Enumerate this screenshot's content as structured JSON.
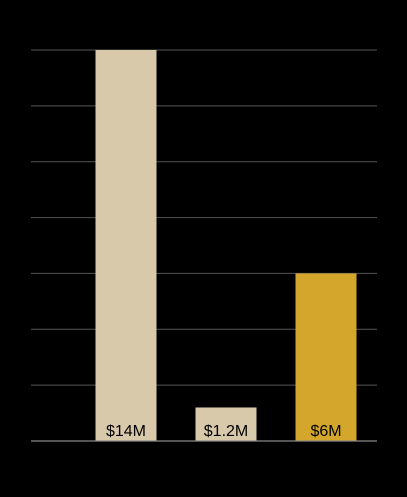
{
  "chart_data": {
    "type": "bar",
    "categories": [
      "",
      "",
      ""
    ],
    "values": [
      14,
      1.2,
      6
    ],
    "value_labels": [
      "$14M",
      "$1.2M",
      "$6M"
    ],
    "colors": [
      "#d9c9ab",
      "#d9c9ab",
      "#d4a72c"
    ],
    "title": "",
    "xlabel": "",
    "ylabel": "",
    "ylim": [
      0,
      14
    ],
    "grid": true,
    "legend": "none"
  },
  "colors": {
    "background": "#000000",
    "bar_neutral": "#d9c9ab",
    "bar_accent": "#d4a72c",
    "gridline": "#555555"
  }
}
